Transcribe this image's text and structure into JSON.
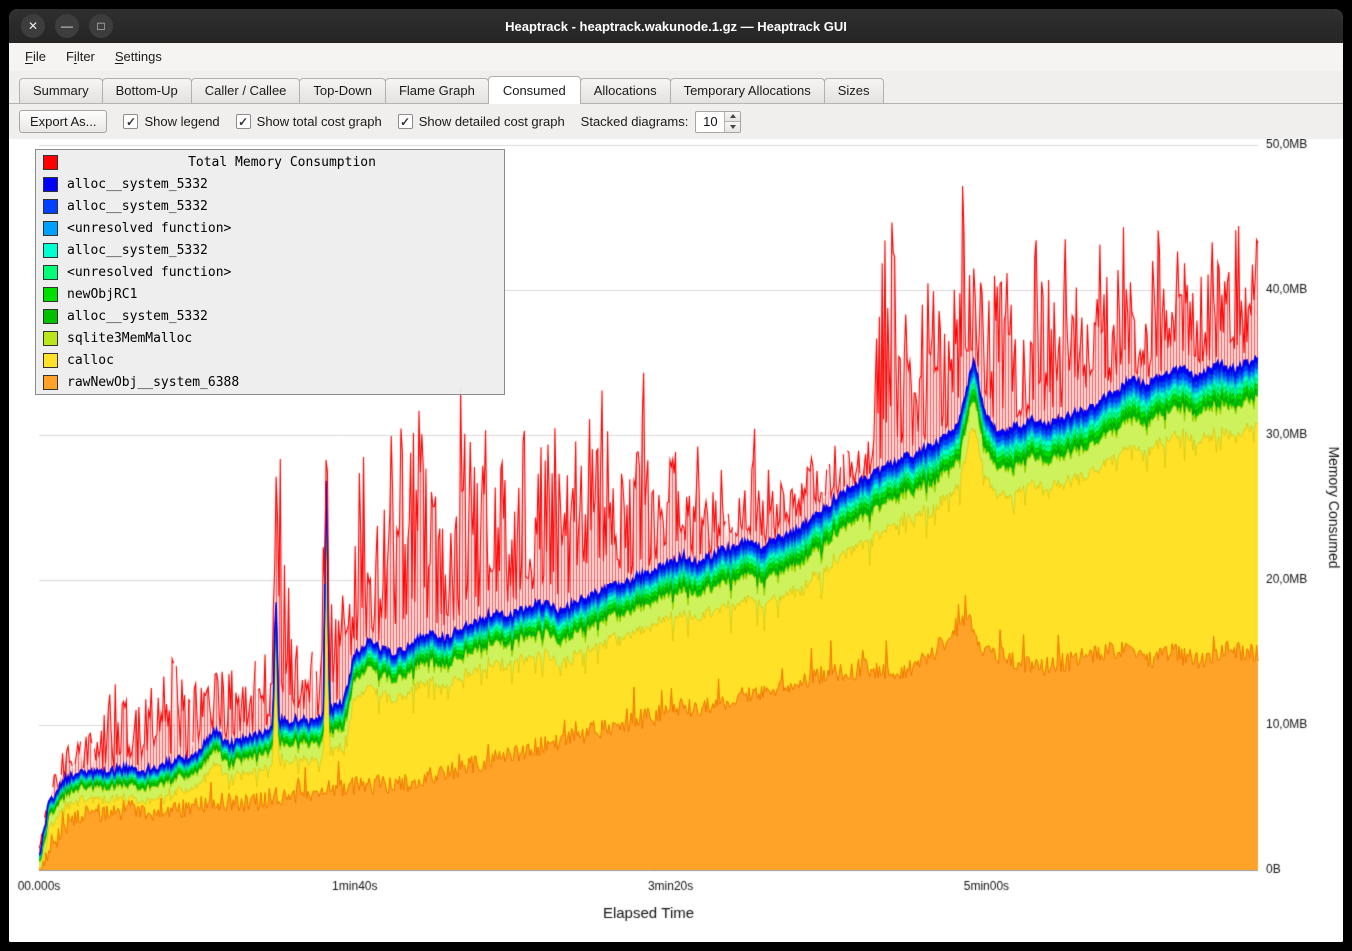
{
  "window": {
    "title": "Heaptrack - heaptrack.wakunode.1.gz — Heaptrack GUI"
  },
  "icons": {
    "close": "✕",
    "minimize": "—",
    "maximize": "□"
  },
  "menu": {
    "items": [
      {
        "pre": "",
        "m": "F",
        "post": "ile"
      },
      {
        "pre": "F",
        "m": "i",
        "post": "lter"
      },
      {
        "pre": "",
        "m": "S",
        "post": "ettings"
      }
    ]
  },
  "tabs": {
    "active": "Consumed",
    "items": [
      {
        "label": "Summary"
      },
      {
        "label": "Bottom-Up"
      },
      {
        "label": "Caller / Callee"
      },
      {
        "label": "Top-Down"
      },
      {
        "label": "Flame Graph"
      },
      {
        "label": "Consumed"
      },
      {
        "label": "Allocations"
      },
      {
        "label": "Temporary Allocations"
      },
      {
        "label": "Sizes"
      }
    ]
  },
  "toolbar": {
    "export_label": "Export As...",
    "checkboxes": [
      {
        "label": "Show legend",
        "checked": true
      },
      {
        "label": "Show total cost graph",
        "checked": true
      },
      {
        "label": "Show detailed cost graph",
        "checked": true
      }
    ],
    "stacked_label": "Stacked diagrams:",
    "stacked_value": "10"
  },
  "legend": {
    "title": "Total Memory Consumption",
    "title_color": "#ff0000",
    "items": [
      {
        "label": "alloc__system_5332",
        "color": "#0000ff"
      },
      {
        "label": "alloc__system_5332",
        "color": "#0040ff"
      },
      {
        "label": "<unresolved function>",
        "color": "#00a0ff"
      },
      {
        "label": "alloc__system_5332",
        "color": "#00ffd0"
      },
      {
        "label": "<unresolved function>",
        "color": "#00ff78"
      },
      {
        "label": "newObjRC1",
        "color": "#00e000"
      },
      {
        "label": "alloc__system_5332",
        "color": "#00c000"
      },
      {
        "label": "sqlite3MemMalloc",
        "color": "#b9e71c"
      },
      {
        "label": "calloc",
        "color": "#ffe227"
      },
      {
        "label": "rawNewObj__system_6388",
        "color": "#ffa228"
      }
    ]
  },
  "chart_data": {
    "type": "area",
    "title": "Total Memory Consumption",
    "xlabel": "Elapsed Time",
    "ylabel": "Memory Consumed",
    "x_unit": "seconds",
    "xlim": [
      0,
      386
    ],
    "ylim_mb": [
      0,
      50
    ],
    "grid": "horizontal-every-10mb",
    "legend_position": "top-left",
    "x_ticks": [
      {
        "label": "00.000s",
        "t": 0
      },
      {
        "label": "1min40s",
        "t": 100
      },
      {
        "label": "3min20s",
        "t": 200
      },
      {
        "label": "5min00s",
        "t": 300
      }
    ],
    "y_ticks": [
      {
        "label": "0B",
        "mb": 0
      },
      {
        "label": "10,0MB",
        "mb": 10
      },
      {
        "label": "20,0MB",
        "mb": 20
      },
      {
        "label": "30,0MB",
        "mb": 30
      },
      {
        "label": "40,0MB",
        "mb": 40
      },
      {
        "label": "50,0MB",
        "mb": 50
      }
    ],
    "total_cost": {
      "name": "Total Memory Consumption",
      "color": "#ff0000",
      "envelope_keypoints_mb": [
        [
          0,
          2
        ],
        [
          6,
          8
        ],
        [
          12,
          9
        ],
        [
          18,
          10
        ],
        [
          24,
          13
        ],
        [
          30,
          11
        ],
        [
          36,
          13
        ],
        [
          42,
          15
        ],
        [
          48,
          12
        ],
        [
          54,
          16
        ],
        [
          60,
          14
        ],
        [
          66,
          14
        ],
        [
          72,
          16
        ],
        [
          75,
          38.5
        ],
        [
          78,
          20
        ],
        [
          84,
          17
        ],
        [
          88,
          15
        ],
        [
          91,
          29
        ],
        [
          94,
          18
        ],
        [
          98,
          20
        ],
        [
          102,
          30
        ],
        [
          106,
          24
        ],
        [
          110,
          26
        ],
        [
          113,
          38
        ],
        [
          116,
          28
        ],
        [
          119,
          31
        ],
        [
          121,
          36.5
        ],
        [
          124,
          27
        ],
        [
          128,
          24
        ],
        [
          131,
          24
        ],
        [
          134,
          37
        ],
        [
          137,
          29
        ],
        [
          140,
          27
        ],
        [
          143,
          36
        ],
        [
          146,
          30
        ],
        [
          149,
          26
        ],
        [
          152,
          30
        ],
        [
          155,
          33
        ],
        [
          158,
          28
        ],
        [
          161,
          36
        ],
        [
          164,
          30
        ],
        [
          167,
          27
        ],
        [
          170,
          31
        ],
        [
          173,
          34
        ],
        [
          176,
          28
        ],
        [
          179,
          35
        ],
        [
          182,
          26
        ],
        [
          185,
          29
        ],
        [
          188,
          31
        ],
        [
          191,
          36
        ],
        [
          194,
          29
        ],
        [
          197,
          27
        ],
        [
          200,
          33
        ],
        [
          203,
          28
        ],
        [
          206,
          26
        ],
        [
          209,
          30
        ],
        [
          212,
          27
        ],
        [
          215,
          29
        ],
        [
          218,
          26
        ],
        [
          221,
          25
        ],
        [
          224,
          28
        ],
        [
          227,
          34
        ],
        [
          230,
          29
        ],
        [
          233,
          26
        ],
        [
          236,
          28
        ],
        [
          239,
          26
        ],
        [
          242,
          29
        ],
        [
          245,
          31
        ],
        [
          248,
          28
        ],
        [
          251,
          30
        ],
        [
          254,
          28
        ],
        [
          257,
          31
        ],
        [
          260,
          29
        ],
        [
          263,
          31
        ],
        [
          266,
          44
        ],
        [
          269,
          45.5
        ],
        [
          272,
          44
        ],
        [
          275,
          39
        ],
        [
          278,
          35
        ],
        [
          281,
          42
        ],
        [
          284,
          40
        ],
        [
          287,
          37
        ],
        [
          290,
          46
        ],
        [
          293,
          48
        ],
        [
          295,
          47.5
        ],
        [
          298,
          44
        ],
        [
          301,
          39
        ],
        [
          304,
          45
        ],
        [
          307,
          41
        ],
        [
          310,
          35
        ],
        [
          313,
          38
        ],
        [
          316,
          45
        ],
        [
          319,
          43
        ],
        [
          322,
          39
        ],
        [
          325,
          45
        ],
        [
          328,
          42
        ],
        [
          331,
          37
        ],
        [
          334,
          45
        ],
        [
          337,
          43
        ],
        [
          340,
          39
        ],
        [
          343,
          45
        ],
        [
          346,
          41
        ],
        [
          349,
          37
        ],
        [
          352,
          45
        ],
        [
          355,
          44
        ],
        [
          358,
          39
        ],
        [
          361,
          45
        ],
        [
          364,
          42
        ],
        [
          367,
          39
        ],
        [
          370,
          45
        ],
        [
          373,
          43
        ],
        [
          376,
          41
        ],
        [
          379,
          45
        ],
        [
          382,
          43
        ],
        [
          385,
          45
        ],
        [
          386,
          44
        ]
      ]
    },
    "stack_top_keypoints_mb": [
      [
        0,
        0.8
      ],
      [
        3,
        4.5
      ],
      [
        8,
        6.3
      ],
      [
        14,
        6.8
      ],
      [
        20,
        6.6
      ],
      [
        26,
        7.0
      ],
      [
        34,
        6.9
      ],
      [
        42,
        7.4
      ],
      [
        50,
        8.0
      ],
      [
        56,
        9.6
      ],
      [
        60,
        8.6
      ],
      [
        66,
        9.0
      ],
      [
        74,
        9.6
      ],
      [
        75,
        19.5
      ],
      [
        76,
        10.2
      ],
      [
        82,
        10.4
      ],
      [
        88,
        10.3
      ],
      [
        90,
        10.6
      ],
      [
        91,
        28.8
      ],
      [
        92,
        11.0
      ],
      [
        96,
        11.4
      ],
      [
        100,
        14.8
      ],
      [
        104,
        15.8
      ],
      [
        108,
        15.4
      ],
      [
        112,
        14.9
      ],
      [
        116,
        15.3
      ],
      [
        120,
        15.9
      ],
      [
        124,
        16.4
      ],
      [
        128,
        15.9
      ],
      [
        132,
        16.4
      ],
      [
        136,
        16.8
      ],
      [
        140,
        17.2
      ],
      [
        144,
        17.8
      ],
      [
        148,
        17.4
      ],
      [
        152,
        17.8
      ],
      [
        156,
        18.2
      ],
      [
        160,
        18.4
      ],
      [
        164,
        17.9
      ],
      [
        168,
        18.2
      ],
      [
        172,
        18.6
      ],
      [
        176,
        19.0
      ],
      [
        180,
        19.4
      ],
      [
        184,
        19.7
      ],
      [
        188,
        20.1
      ],
      [
        192,
        20.4
      ],
      [
        196,
        20.8
      ],
      [
        200,
        21.2
      ],
      [
        204,
        21.6
      ],
      [
        208,
        21.2
      ],
      [
        212,
        21.6
      ],
      [
        216,
        22.0
      ],
      [
        220,
        22.3
      ],
      [
        224,
        22.6
      ],
      [
        228,
        22.2
      ],
      [
        232,
        22.6
      ],
      [
        236,
        23.0
      ],
      [
        240,
        23.4
      ],
      [
        244,
        24.0
      ],
      [
        248,
        24.8
      ],
      [
        252,
        25.6
      ],
      [
        256,
        26.2
      ],
      [
        260,
        26.8
      ],
      [
        264,
        27.2
      ],
      [
        268,
        27.7
      ],
      [
        272,
        28.2
      ],
      [
        276,
        28.6
      ],
      [
        280,
        29.0
      ],
      [
        284,
        29.4
      ],
      [
        288,
        30.0
      ],
      [
        291,
        30.8
      ],
      [
        293,
        32.4
      ],
      [
        296,
        35.4
      ],
      [
        298,
        33.0
      ],
      [
        300,
        31.2
      ],
      [
        303,
        30.4
      ],
      [
        306,
        30.2
      ],
      [
        310,
        30.6
      ],
      [
        314,
        31.0
      ],
      [
        318,
        30.6
      ],
      [
        322,
        30.9
      ],
      [
        326,
        31.3
      ],
      [
        330,
        31.6
      ],
      [
        334,
        32.0
      ],
      [
        338,
        32.6
      ],
      [
        342,
        33.2
      ],
      [
        346,
        33.8
      ],
      [
        350,
        33.4
      ],
      [
        354,
        33.8
      ],
      [
        358,
        34.2
      ],
      [
        362,
        34.6
      ],
      [
        366,
        33.9
      ],
      [
        370,
        34.4
      ],
      [
        374,
        34.9
      ],
      [
        378,
        34.5
      ],
      [
        382,
        34.9
      ],
      [
        386,
        35.3
      ]
    ],
    "bottom_layers": [
      {
        "name": "rawNewObj__system_6388",
        "fill": "#ffa228",
        "line": "#f07800",
        "noise_mb": 1.4,
        "top_keypoints_mb": [
          [
            0,
            0.2
          ],
          [
            4,
            1.8
          ],
          [
            10,
            3.4
          ],
          [
            18,
            4.0
          ],
          [
            30,
            4.2
          ],
          [
            40,
            3.9
          ],
          [
            55,
            4.6
          ],
          [
            70,
            4.8
          ],
          [
            85,
            5.4
          ],
          [
            100,
            5.8
          ],
          [
            115,
            6.0
          ],
          [
            130,
            6.8
          ],
          [
            145,
            7.8
          ],
          [
            160,
            8.6
          ],
          [
            175,
            9.6
          ],
          [
            190,
            10.4
          ],
          [
            205,
            11.1
          ],
          [
            220,
            11.8
          ],
          [
            235,
            12.5
          ],
          [
            250,
            13.5
          ],
          [
            262,
            13.9
          ],
          [
            272,
            13.5
          ],
          [
            282,
            14.7
          ],
          [
            290,
            16.6
          ],
          [
            294,
            17.4
          ],
          [
            300,
            15.1
          ],
          [
            310,
            14.4
          ],
          [
            320,
            14.0
          ],
          [
            332,
            14.8
          ],
          [
            344,
            15.3
          ],
          [
            352,
            14.5
          ],
          [
            360,
            15.0
          ],
          [
            368,
            14.3
          ],
          [
            376,
            15.2
          ],
          [
            386,
            15.0
          ]
        ]
      },
      {
        "name": "calloc",
        "fill": "#ffe227",
        "line": "#dcbc00",
        "derived": "stack_top_minus_upper_bands"
      }
    ],
    "upper_bands_bottom_to_top": [
      {
        "name": "sqlite3MemMalloc",
        "fill": "#cdf25c",
        "line": "#9ed400",
        "weight": 1.5
      },
      {
        "name": "alloc__system_5332",
        "fill": "#00c000",
        "line": "#009c00",
        "weight": 0.35
      },
      {
        "name": "newObjRC1",
        "fill": "#00e000",
        "line": "#00b800",
        "weight": 0.3
      },
      {
        "name": "<unresolved function>",
        "fill": "#00ff78",
        "line": "#00d862",
        "weight": 0.3
      },
      {
        "name": "alloc__system_5332",
        "fill": "#00ffd0",
        "line": "#00d6ae",
        "weight": 0.3
      },
      {
        "name": "<unresolved function>",
        "fill": "#00a0ff",
        "line": "#0084dc",
        "weight": 0.25
      },
      {
        "name": "alloc__system_5332",
        "fill": "#0040ff",
        "line": "#0034d0",
        "weight": 0.3
      },
      {
        "name": "alloc__system_5332",
        "fill": "#0000ff",
        "line": "#0000ee",
        "weight": 0.3
      }
    ],
    "band_total_weight": 3.6,
    "band_scale_keypoints": [
      [
        0,
        0.45
      ],
      [
        60,
        0.6
      ],
      [
        100,
        0.8
      ],
      [
        180,
        0.95
      ],
      [
        260,
        1.1
      ],
      [
        386,
        1.2
      ]
    ]
  }
}
